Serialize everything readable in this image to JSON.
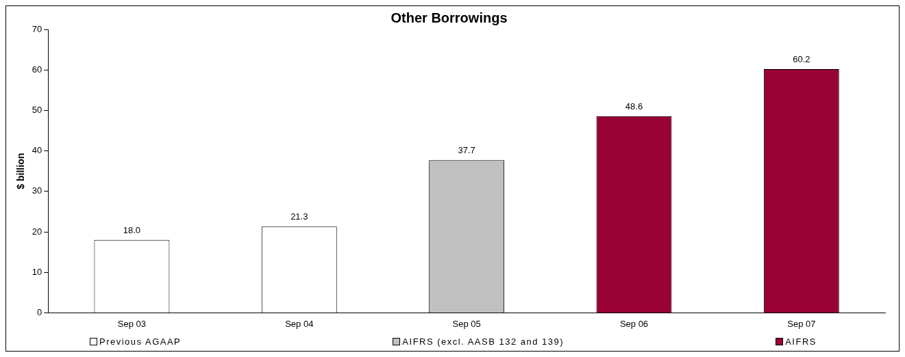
{
  "chart_data": {
    "type": "bar",
    "title": "Other Borrowings",
    "ylabel": "$ billion",
    "categories": [
      "Sep 03",
      "Sep 04",
      "Sep 05",
      "Sep 06",
      "Sep 07"
    ],
    "series": [
      {
        "name": "Previous AGAAP",
        "color": "#ffffff",
        "values": [
          18.0,
          21.3,
          null,
          null,
          null
        ],
        "value_labels": [
          "18.0",
          "21.3",
          null,
          null,
          null
        ]
      },
      {
        "name": "AIFRS (excl. AASB 132 and 139)",
        "color": "#c0c0c0",
        "values": [
          null,
          null,
          37.7,
          null,
          null
        ],
        "value_labels": [
          null,
          null,
          "37.7",
          null,
          null
        ]
      },
      {
        "name": "AIFRS",
        "color": "#990033",
        "values": [
          null,
          null,
          null,
          48.6,
          60.2
        ],
        "value_labels": [
          null,
          null,
          null,
          "48.6",
          "60.2"
        ]
      }
    ],
    "ylim": [
      0,
      70
    ],
    "yticks": [
      0,
      10,
      20,
      30,
      40,
      50,
      60,
      70
    ],
    "grid": false,
    "legend": "bottom"
  }
}
